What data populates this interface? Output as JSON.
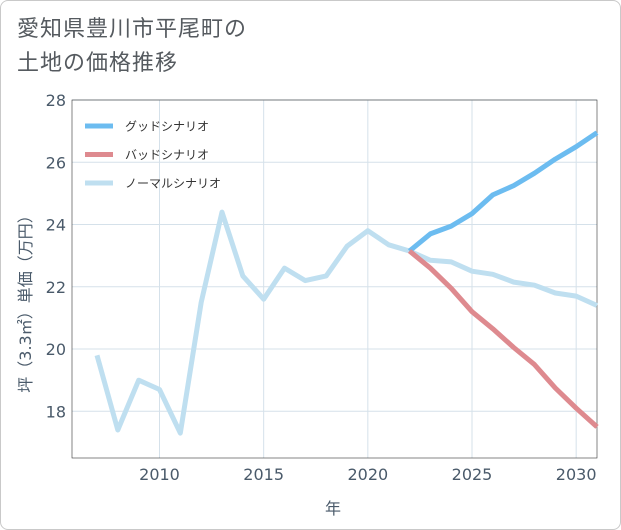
{
  "title_lines": [
    "愛知県豊川市平尾町の",
    "土地の価格推移"
  ],
  "chart_data": {
    "type": "line",
    "title": "愛知県豊川市平尾町の土地の価格推移",
    "xlabel": "年",
    "ylabel": "坪（3.3㎡）単価（万円）",
    "xlim": [
      2005.8,
      2031
    ],
    "ylim": [
      16.5,
      28
    ],
    "xticks": [
      2010,
      2015,
      2020,
      2025,
      2030
    ],
    "yticks": [
      18,
      20,
      22,
      24,
      26,
      28
    ],
    "grid": true,
    "legend_position": "top-left",
    "series": [
      {
        "name": "グッドシナリオ",
        "color": "#6cbcf0",
        "x": [
          2022,
          2023,
          2024,
          2025,
          2026,
          2027,
          2028,
          2029,
          2030,
          2031
        ],
        "y": [
          23.15,
          23.7,
          23.95,
          24.35,
          24.95,
          25.25,
          25.65,
          26.1,
          26.5,
          26.95
        ]
      },
      {
        "name": "バッドシナリオ",
        "color": "#de8a8f",
        "x": [
          2022,
          2023,
          2024,
          2025,
          2026,
          2027,
          2028,
          2029,
          2030,
          2031
        ],
        "y": [
          23.15,
          22.6,
          21.95,
          21.2,
          20.65,
          20.05,
          19.5,
          18.75,
          18.1,
          17.5
        ]
      },
      {
        "name": "ノーマルシナリオ",
        "color": "#bfdff0",
        "x": [
          2007,
          2008,
          2009,
          2010,
          2011,
          2012,
          2013,
          2014,
          2015,
          2016,
          2017,
          2018,
          2019,
          2020,
          2021,
          2022,
          2023,
          2024,
          2025,
          2026,
          2027,
          2028,
          2029,
          2030,
          2031
        ],
        "y": [
          19.8,
          17.4,
          19.0,
          18.7,
          17.3,
          21.5,
          24.4,
          22.35,
          21.6,
          22.6,
          22.2,
          22.35,
          23.3,
          23.8,
          23.35,
          23.15,
          22.85,
          22.8,
          22.5,
          22.4,
          22.15,
          22.05,
          21.8,
          21.7,
          21.4
        ]
      }
    ]
  }
}
